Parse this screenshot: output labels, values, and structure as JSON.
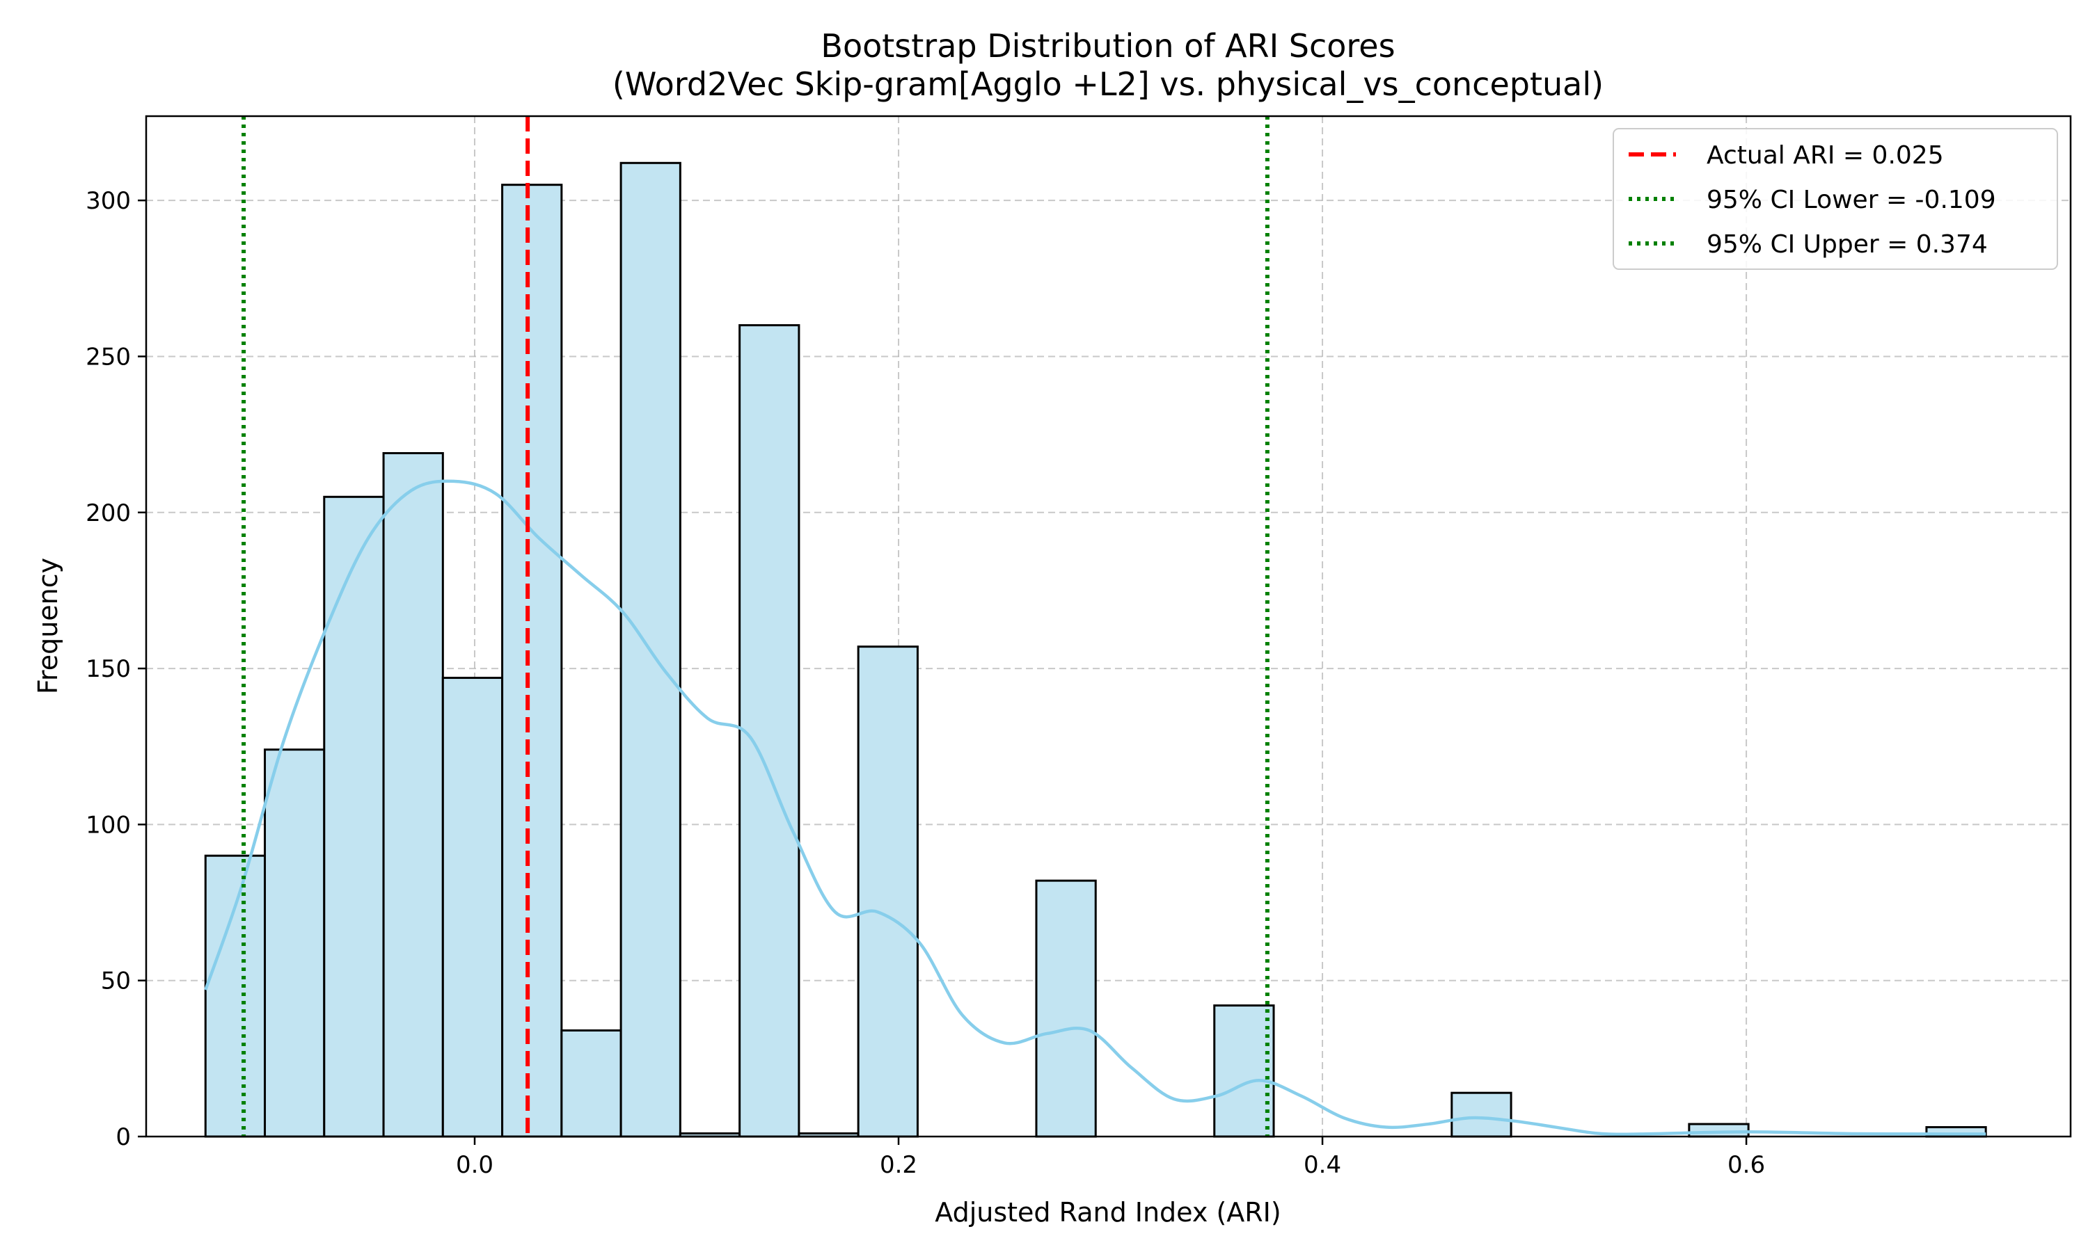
{
  "chart_data": {
    "type": "bar",
    "title": "Bootstrap Distribution of ARI Scores",
    "subtitle": "(Word2Vec Skip-gram[Agglo +L2] vs. physical_vs_conceptual)",
    "xlabel": "Adjusted Rand Index (ARI)",
    "ylabel": "Frequency",
    "xlim": [
      -0.155,
      0.753
    ],
    "ylim": [
      0,
      327
    ],
    "xticks": [
      {
        "value": 0.0,
        "label": "0.0"
      },
      {
        "value": 0.2,
        "label": "0.2"
      },
      {
        "value": 0.4,
        "label": "0.4"
      },
      {
        "value": 0.6,
        "label": "0.6"
      }
    ],
    "yticks": [
      {
        "value": 0,
        "label": "0"
      },
      {
        "value": 50,
        "label": "50"
      },
      {
        "value": 100,
        "label": "100"
      },
      {
        "value": 150,
        "label": "150"
      },
      {
        "value": 200,
        "label": "200"
      },
      {
        "value": 250,
        "label": "250"
      },
      {
        "value": 300,
        "label": "300"
      }
    ],
    "grid": true,
    "bin_edges": [
      -0.127,
      -0.099,
      -0.071,
      -0.043,
      -0.015,
      0.013,
      0.041,
      0.069,
      0.097,
      0.125,
      0.153,
      0.181,
      0.209,
      0.237,
      0.265,
      0.293,
      0.321,
      0.349,
      0.377,
      0.405,
      0.433,
      0.461,
      0.489,
      0.517,
      0.545,
      0.573,
      0.601,
      0.629,
      0.657,
      0.685,
      0.713
    ],
    "values": [
      90,
      124,
      205,
      219,
      147,
      305,
      34,
      312,
      1,
      260,
      1,
      157,
      0,
      0,
      82,
      0,
      0,
      42,
      0,
      0,
      0,
      14,
      0,
      0,
      0,
      4,
      0,
      0,
      0,
      3
    ],
    "kde": {
      "x": [
        -0.127,
        -0.11,
        -0.09,
        -0.07,
        -0.05,
        -0.03,
        -0.01,
        0.01,
        0.03,
        0.05,
        0.07,
        0.09,
        0.11,
        0.13,
        0.15,
        0.17,
        0.19,
        0.21,
        0.23,
        0.25,
        0.27,
        0.29,
        0.31,
        0.33,
        0.35,
        0.37,
        0.39,
        0.41,
        0.43,
        0.45,
        0.47,
        0.49,
        0.51,
        0.53,
        0.55,
        0.6,
        0.65,
        0.7,
        0.713
      ],
      "y": [
        47,
        80,
        127,
        163,
        192,
        207,
        210,
        206,
        192,
        180,
        168,
        149,
        134,
        128,
        98,
        72,
        72,
        62,
        39,
        30,
        33,
        34,
        22,
        12,
        13,
        18,
        13,
        6,
        3,
        4,
        6,
        5,
        3,
        1,
        0.8,
        1.5,
        0.9,
        0.8,
        0.8
      ],
      "color": "#87ceeb"
    },
    "bar_fill": "#c2e4f2",
    "bar_edge": "#000000",
    "reference_lines": [
      {
        "x": 0.025,
        "label": "Actual ARI = 0.025",
        "color": "#ff0000",
        "style": "dashed"
      },
      {
        "x": -0.109,
        "label": "95% CI Lower = -0.109",
        "color": "#008000",
        "style": "dotted"
      },
      {
        "x": 0.374,
        "label": "95% CI Upper = 0.374",
        "color": "#008000",
        "style": "dotted"
      }
    ],
    "legend_position": "top-right"
  }
}
